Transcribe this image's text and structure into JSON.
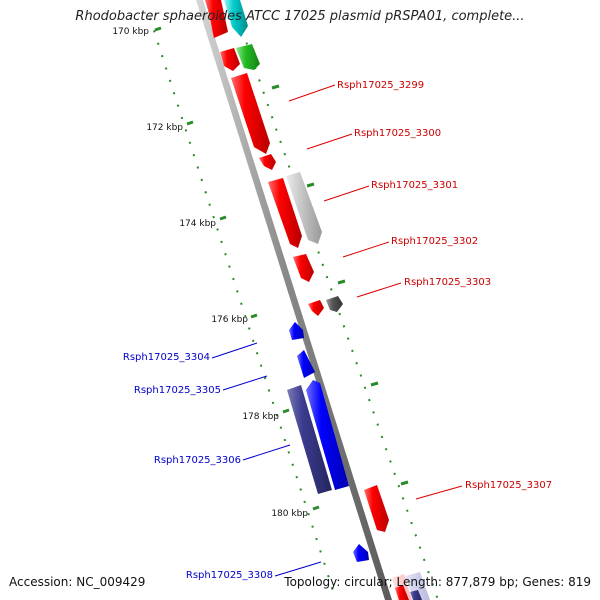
{
  "title": "Rhodobacter sphaeroides ATCC 17025 plasmid pRSPA01, complete...",
  "footer": {
    "accession": "Accession: NC_009429",
    "summary": "Topology: circular; Length: 877,879 bp; Genes: 819"
  },
  "ruler": {
    "labels": [
      "170 kbp",
      "172 kbp",
      "174 kbp",
      "176 kbp",
      "178 kbp",
      "180 kbp"
    ],
    "tick_color": "#2a8a2a"
  },
  "genes": [
    {
      "label": "Rsph17025_3299",
      "strand": "forward",
      "color": "#ff0000"
    },
    {
      "label": "Rsph17025_3300",
      "strand": "forward",
      "color": "#ff0000"
    },
    {
      "label": "Rsph17025_3301",
      "strand": "forward",
      "color": "#c0c0c0"
    },
    {
      "label": "Rsph17025_3302",
      "strand": "forward",
      "color": "#ff0000"
    },
    {
      "label": "Rsph17025_3303",
      "strand": "forward",
      "color": "#555555"
    },
    {
      "label": "Rsph17025_3304",
      "strand": "reverse",
      "color": "#0000ff"
    },
    {
      "label": "Rsph17025_3305",
      "strand": "reverse",
      "color": "#0000ff"
    },
    {
      "label": "Rsph17025_3306",
      "strand": "reverse",
      "color": "#3b3b8f"
    },
    {
      "label": "Rsph17025_3307",
      "strand": "forward",
      "color": "#ff0000"
    },
    {
      "label": "Rsph17025_3308",
      "strand": "reverse",
      "color": "#0000ff"
    }
  ],
  "colors": {
    "forward_label": "#cc0000",
    "reverse_label": "#0000cc",
    "backbone": "#808080",
    "cyan_feature": "#00cccc",
    "green_feature": "#22bb22"
  }
}
